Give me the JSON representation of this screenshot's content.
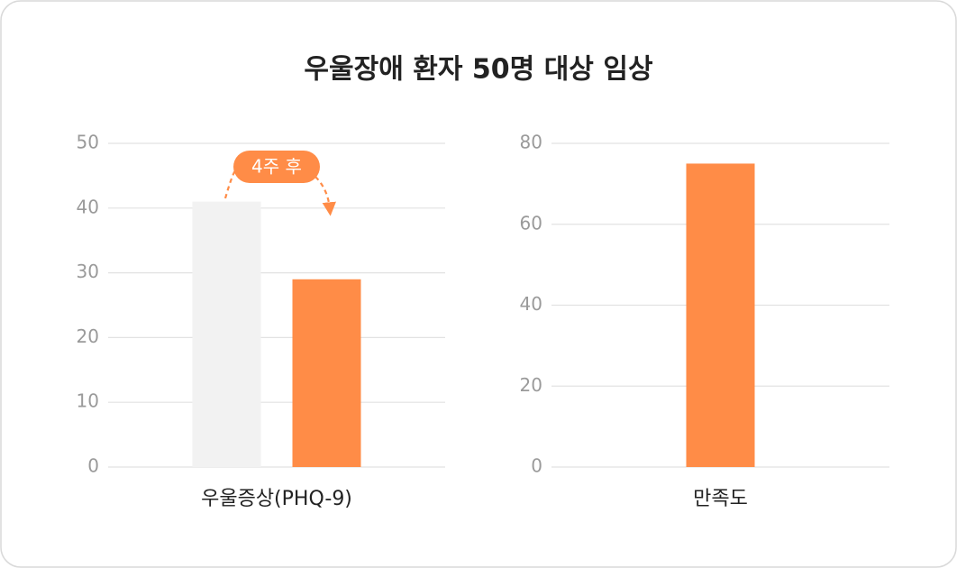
{
  "title": "우울장애 환자 50명 대상 임상",
  "chart_data": [
    {
      "type": "bar",
      "categories": [
        "우울증상(PHQ-9)"
      ],
      "series": [
        {
          "color": "#f2f2f2",
          "values": [
            41
          ]
        },
        {
          "color": "#ff8c47",
          "values": [
            29
          ]
        }
      ],
      "annotation": "4주 후",
      "ylim": [
        0,
        50
      ],
      "yticks": [
        0,
        10,
        20,
        30,
        40,
        50
      ],
      "grid": true
    },
    {
      "type": "bar",
      "categories": [
        "만족도"
      ],
      "series": [
        {
          "color": "#ff8c47",
          "values": [
            75
          ]
        }
      ],
      "ylim": [
        0,
        80
      ],
      "yticks": [
        0,
        20,
        40,
        60,
        80
      ],
      "grid": true
    }
  ]
}
